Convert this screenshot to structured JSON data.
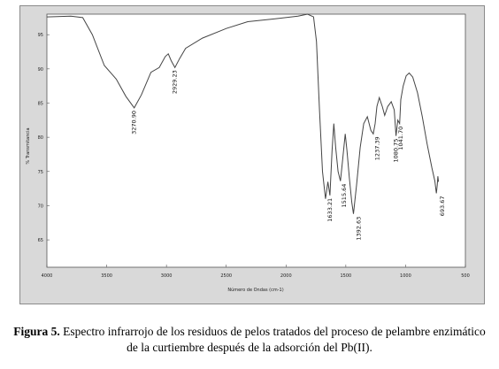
{
  "caption": {
    "label": "Figura 5.",
    "text": "Espectro infrarrojo de los residuos de pelos tratados del proceso de pelambre enzimático de la curtiembre después de la adsorción del Pb(II)."
  },
  "chart_data": {
    "type": "line",
    "title": "",
    "xlabel": "Número de Ondas (cm-1)",
    "ylabel": "% Transmitancia",
    "xlim": [
      4000,
      500
    ],
    "ylim": [
      61,
      98
    ],
    "x_ticks": [
      4000,
      3500,
      3000,
      2500,
      2000,
      1500,
      1000,
      500
    ],
    "y_ticks": [
      95,
      90,
      85,
      80,
      75,
      70,
      65
    ],
    "grid": false,
    "line_color": "#444444",
    "series": [
      {
        "points": [
          [
            4000,
            97.6
          ],
          [
            3800,
            97.7
          ],
          [
            3700,
            97.5
          ],
          [
            3620,
            95.0
          ],
          [
            3520,
            90.5
          ],
          [
            3420,
            88.5
          ],
          [
            3340,
            86.0
          ],
          [
            3270,
            84.3
          ],
          [
            3210,
            86.2
          ],
          [
            3130,
            89.5
          ],
          [
            3060,
            90.2
          ],
          [
            3010,
            91.8
          ],
          [
            2985,
            92.2
          ],
          [
            2960,
            91.2
          ],
          [
            2929,
            90.2
          ],
          [
            2890,
            91.5
          ],
          [
            2840,
            93.0
          ],
          [
            2700,
            94.5
          ],
          [
            2500,
            95.9
          ],
          [
            2320,
            96.9
          ],
          [
            2100,
            97.3
          ],
          [
            1900,
            97.7
          ],
          [
            1820,
            98.0
          ],
          [
            1770,
            97.6
          ],
          [
            1745,
            94.0
          ],
          [
            1720,
            84.0
          ],
          [
            1695,
            75.0
          ],
          [
            1670,
            71.0
          ],
          [
            1650,
            73.5
          ],
          [
            1633,
            71.5
          ],
          [
            1615,
            78.0
          ],
          [
            1600,
            82.0
          ],
          [
            1585,
            78.5
          ],
          [
            1565,
            75.0
          ],
          [
            1545,
            73.6
          ],
          [
            1525,
            77.0
          ],
          [
            1505,
            80.5
          ],
          [
            1490,
            78.0
          ],
          [
            1470,
            74.0
          ],
          [
            1450,
            70.5
          ],
          [
            1436,
            68.8
          ],
          [
            1410,
            73.0
          ],
          [
            1380,
            78.5
          ],
          [
            1350,
            82.0
          ],
          [
            1320,
            83.0
          ],
          [
            1290,
            81.0
          ],
          [
            1270,
            80.5
          ],
          [
            1255,
            82.0
          ],
          [
            1240,
            84.5
          ],
          [
            1220,
            85.8
          ],
          [
            1195,
            84.5
          ],
          [
            1175,
            83.2
          ],
          [
            1150,
            84.5
          ],
          [
            1120,
            85.2
          ],
          [
            1095,
            84.0
          ],
          [
            1080,
            80.2
          ],
          [
            1065,
            82.5
          ],
          [
            1050,
            82.0
          ],
          [
            1040,
            85.5
          ],
          [
            1020,
            87.5
          ],
          [
            995,
            89.0
          ],
          [
            970,
            89.4
          ],
          [
            940,
            88.8
          ],
          [
            900,
            86.5
          ],
          [
            860,
            83.0
          ],
          [
            820,
            79.0
          ],
          [
            780,
            75.5
          ],
          [
            755,
            73.6
          ],
          [
            743,
            71.8
          ],
          [
            735,
            73.0
          ],
          [
            730,
            74.3
          ],
          [
            725,
            73.5
          ]
        ]
      }
    ],
    "annotations": [
      {
        "text": "3270.90",
        "x": 3270,
        "y": 84.3
      },
      {
        "text": "2929.23",
        "x": 2929,
        "y": 90.2
      },
      {
        "text": "1633.21",
        "x": 1633,
        "y": 71.5
      },
      {
        "text": "1515.64",
        "x": 1515,
        "y": 73.6
      },
      {
        "text": "1392.63",
        "x": 1392,
        "y": 68.8
      },
      {
        "text": "1237.39",
        "x": 1237,
        "y": 80.5
      },
      {
        "text": "1080.75",
        "x": 1080,
        "y": 80.2
      },
      {
        "text": "1041.70",
        "x": 1041,
        "y": 82.0
      },
      {
        "text": "693.67",
        "x": 693,
        "y": 71.8
      }
    ]
  }
}
